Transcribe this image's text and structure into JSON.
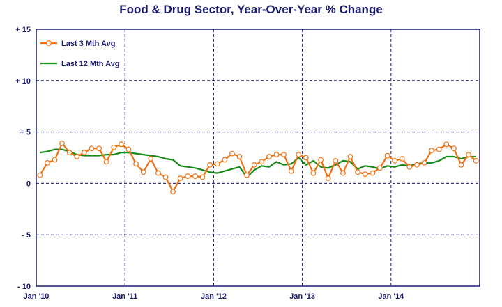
{
  "chart_data": {
    "type": "line",
    "title": "Food & Drug Sector, Year-Over-Year % Change",
    "xlabel": "",
    "ylabel": "",
    "ylim": [
      -10,
      15
    ],
    "yticks": [
      {
        "value": 15,
        "label": "+ 15"
      },
      {
        "value": 10,
        "label": "+ 10"
      },
      {
        "value": 5,
        "label": "+ 5"
      },
      {
        "value": 0,
        "label": "0"
      },
      {
        "value": -5,
        "label": "- 5"
      },
      {
        "value": -10,
        "label": "- 10"
      }
    ],
    "xticks": [
      {
        "index": 0,
        "label": "Jan '10"
      },
      {
        "index": 12,
        "label": "Jan '11"
      },
      {
        "index": 24,
        "label": "Jan '12"
      },
      {
        "index": 36,
        "label": "Jan '13"
      },
      {
        "index": 48,
        "label": "Jan '14"
      }
    ],
    "grid": true,
    "legend_position": "top-left",
    "series": [
      {
        "name": "Last 3 Mth Avg",
        "color": "#f07010",
        "marker": "circle",
        "values": [
          0.8,
          2.0,
          2.3,
          3.9,
          3.0,
          2.6,
          3.0,
          3.4,
          3.4,
          2.1,
          3.5,
          3.8,
          3.3,
          1.9,
          1.1,
          2.4,
          1.0,
          0.6,
          -0.8,
          0.5,
          0.7,
          0.7,
          0.6,
          1.8,
          1.9,
          2.3,
          2.9,
          2.6,
          0.8,
          1.8,
          2.1,
          2.6,
          2.8,
          2.8,
          1.2,
          2.8,
          2.5,
          1.0,
          2.3,
          0.5,
          2.2,
          1.0,
          2.6,
          1.1,
          0.9,
          1.0,
          1.5,
          2.7,
          2.2,
          2.4,
          1.6,
          1.8,
          2.0,
          3.2,
          3.3,
          3.8,
          3.4,
          1.8,
          2.8,
          2.2
        ]
      },
      {
        "name": "Last 12 Mth Avg",
        "color": "#1a8a1a",
        "marker": "none",
        "values": [
          3.0,
          3.1,
          3.3,
          3.3,
          3.1,
          2.8,
          2.7,
          2.7,
          2.7,
          2.8,
          2.8,
          3.0,
          3.0,
          2.9,
          2.8,
          2.7,
          2.6,
          2.4,
          2.3,
          1.7,
          1.6,
          1.5,
          1.3,
          1.1,
          1.0,
          1.2,
          1.4,
          1.6,
          0.6,
          1.3,
          1.7,
          1.6,
          2.1,
          1.8,
          1.9,
          2.5,
          1.8,
          2.2,
          1.6,
          1.5,
          1.8,
          2.2,
          2.1,
          1.4,
          1.7,
          1.6,
          1.4,
          1.7,
          1.6,
          1.8,
          1.7,
          1.9,
          2.0,
          2.0,
          2.2,
          2.6,
          2.6,
          2.4,
          2.6,
          2.6
        ]
      }
    ]
  }
}
